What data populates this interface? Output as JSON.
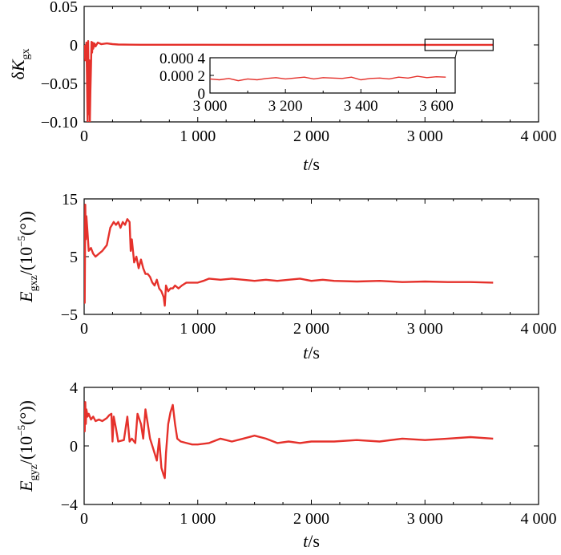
{
  "colors": {
    "series": "#e5312b",
    "axis": "#000000"
  },
  "chart_data": [
    {
      "type": "line",
      "panel": "top",
      "xlim": [
        0,
        4000
      ],
      "ylim": [
        -0.1,
        0.05
      ],
      "xticks": [
        {
          "v": 0,
          "label": "0"
        },
        {
          "v": 1000,
          "label": "1 000"
        },
        {
          "v": 2000,
          "label": "2 000"
        },
        {
          "v": 3000,
          "label": "3 000"
        },
        {
          "v": 4000,
          "label": "4 000"
        }
      ],
      "yticks": [
        {
          "v": 0.05,
          "label": "0.05"
        },
        {
          "v": 0,
          "label": "0"
        },
        {
          "v": -0.05,
          "label": "−0.05"
        },
        {
          "v": -0.1,
          "label": "−0.10"
        }
      ],
      "xlabel": {
        "main": "t",
        "unit": "/s"
      },
      "ylabel": {
        "prefix": "δK",
        "sub": "gx"
      },
      "series": [
        {
          "x": [
            0,
            10,
            20,
            25,
            30,
            35,
            40,
            45,
            50,
            55,
            60,
            65,
            70,
            75,
            80,
            90,
            100,
            120,
            150,
            200,
            250,
            300,
            400,
            500,
            700,
            1000,
            1500,
            2000,
            2500,
            3000,
            3600
          ],
          "y": [
            0.0,
            -0.02,
            0.003,
            -0.04,
            -0.1,
            0.005,
            -0.09,
            -0.02,
            -0.1,
            -0.06,
            -0.03,
            0.004,
            -0.01,
            0.003,
            -0.005,
            0.002,
            -0.002,
            0.003,
            0.001,
            0.002,
            0.001,
            0.0005,
            0.0003,
            0.0002,
            0.0002,
            0.0002,
            0.00015,
            0.00015,
            0.00015,
            0.00015,
            0.00015
          ]
        }
      ],
      "zoom_box": {
        "xlim": [
          3000,
          3600
        ]
      },
      "inset": {
        "xlim": [
          3000,
          3650
        ],
        "ylim": [
          0,
          0.0004
        ],
        "xticks": [
          {
            "v": 3000,
            "label": "3 000"
          },
          {
            "v": 3200,
            "label": "3 200"
          },
          {
            "v": 3400,
            "label": "3 400"
          },
          {
            "v": 3600,
            "label": "3 600"
          }
        ],
        "yticks": [
          {
            "v": 0.0004,
            "label": "0.000 4"
          },
          {
            "v": 0.0002,
            "label": "0.000 2"
          },
          {
            "v": 0,
            "label": "0"
          }
        ],
        "series": [
          {
            "x": [
              3000,
              3025,
              3050,
              3075,
              3100,
              3125,
              3150,
              3175,
              3200,
              3225,
              3250,
              3275,
              3300,
              3325,
              3350,
              3375,
              3400,
              3425,
              3450,
              3475,
              3500,
              3525,
              3550,
              3575,
              3600,
              3625
            ],
            "y": [
              0.00016,
              0.00015,
              0.000165,
              0.00014,
              0.00016,
              0.00015,
              0.000165,
              0.000175,
              0.00016,
              0.00017,
              0.00018,
              0.00016,
              0.000175,
              0.00017,
              0.000165,
              0.00018,
              0.00015,
              0.000165,
              0.00017,
              0.00016,
              0.00018,
              0.00017,
              0.00019,
              0.000175,
              0.000185,
              0.00018
            ]
          }
        ]
      }
    },
    {
      "type": "line",
      "panel": "middle",
      "xlim": [
        0,
        4000
      ],
      "ylim": [
        -5,
        15
      ],
      "xticks": [
        {
          "v": 0,
          "label": "0"
        },
        {
          "v": 1000,
          "label": "1 000"
        },
        {
          "v": 2000,
          "label": "2 000"
        },
        {
          "v": 3000,
          "label": "3 000"
        },
        {
          "v": 4000,
          "label": "4 000"
        }
      ],
      "yticks": [
        {
          "v": 15,
          "label": "15"
        },
        {
          "v": 5,
          "label": "5"
        },
        {
          "v": -5,
          "label": "−5"
        }
      ],
      "xlabel": {
        "main": "t",
        "unit": "/s"
      },
      "ylabel": {
        "prefix": "E",
        "sub": "gxz",
        "unit_a": "/(10",
        "sup": "−5",
        "unit_b": "(°))"
      },
      "series": [
        {
          "x": [
            0,
            5,
            10,
            15,
            20,
            30,
            40,
            60,
            80,
            100,
            130,
            160,
            200,
            230,
            260,
            280,
            300,
            320,
            340,
            360,
            380,
            400,
            410,
            420,
            440,
            460,
            480,
            500,
            520,
            540,
            560,
            580,
            600,
            620,
            640,
            660,
            680,
            700,
            710,
            720,
            740,
            760,
            780,
            800,
            830,
            860,
            900,
            950,
            1000,
            1050,
            1100,
            1200,
            1300,
            1400,
            1500,
            1600,
            1700,
            1800,
            1900,
            2000,
            2100,
            2200,
            2400,
            2600,
            2800,
            3000,
            3200,
            3400,
            3600
          ],
          "y": [
            3,
            -3,
            14,
            8,
            12,
            9,
            6,
            6.5,
            5.5,
            5,
            5.5,
            6,
            7,
            10,
            11,
            10.5,
            11,
            10,
            11,
            10.5,
            11.5,
            11,
            6,
            8,
            4,
            5,
            3,
            4.5,
            3,
            2,
            2,
            1.5,
            0.5,
            0,
            1,
            -0.5,
            -1,
            -2,
            -3.5,
            0,
            -1,
            -0.5,
            -0.5,
            0,
            -0.5,
            0,
            0.5,
            0.5,
            0.5,
            0.8,
            1.2,
            1.0,
            1.2,
            1.0,
            0.8,
            1.0,
            0.8,
            1.0,
            1.2,
            0.8,
            1.0,
            0.8,
            0.7,
            0.8,
            0.6,
            0.7,
            0.6,
            0.6,
            0.5
          ]
        }
      ]
    },
    {
      "type": "line",
      "panel": "bottom",
      "xlim": [
        0,
        4000
      ],
      "ylim": [
        -4,
        4
      ],
      "xticks": [
        {
          "v": 0,
          "label": "0"
        },
        {
          "v": 1000,
          "label": "1 000"
        },
        {
          "v": 2000,
          "label": "2 000"
        },
        {
          "v": 3000,
          "label": "3 000"
        },
        {
          "v": 4000,
          "label": "4 000"
        }
      ],
      "yticks": [
        {
          "v": 4,
          "label": "4"
        },
        {
          "v": 0,
          "label": "0"
        },
        {
          "v": -4,
          "label": "−4"
        }
      ],
      "xlabel": {
        "main": "t",
        "unit": "/s"
      },
      "ylabel": {
        "prefix": "E",
        "sub": "gyz",
        "unit_a": "/(10",
        "sup": "−5",
        "unit_b": "(°))"
      },
      "series": [
        {
          "x": [
            0,
            5,
            10,
            15,
            20,
            30,
            40,
            60,
            80,
            100,
            130,
            160,
            200,
            220,
            240,
            250,
            260,
            280,
            300,
            350,
            380,
            400,
            420,
            450,
            470,
            500,
            520,
            540,
            560,
            580,
            600,
            620,
            640,
            660,
            680,
            700,
            710,
            720,
            740,
            760,
            780,
            800,
            820,
            850,
            900,
            950,
            1000,
            1100,
            1200,
            1300,
            1400,
            1500,
            1600,
            1700,
            1800,
            1900,
            2000,
            2200,
            2400,
            2600,
            2800,
            3000,
            3200,
            3400,
            3600
          ],
          "y": [
            2,
            1,
            3,
            1.5,
            2.5,
            2,
            2.2,
            1.8,
            2,
            1.7,
            1.8,
            1.7,
            1.9,
            2.1,
            2.2,
            0.3,
            2,
            1.2,
            0.3,
            0.4,
            2,
            0.3,
            0.5,
            0.2,
            2.2,
            1.5,
            0.5,
            2.5,
            1.5,
            0.5,
            0,
            -0.5,
            -1,
            0.5,
            -1.5,
            -2,
            -2.2,
            -0.5,
            1.5,
            2.3,
            2.8,
            1.5,
            0.5,
            0.3,
            0.2,
            0.1,
            0.1,
            0.2,
            0.5,
            0.3,
            0.5,
            0.7,
            0.5,
            0.2,
            0.3,
            0.2,
            0.3,
            0.3,
            0.4,
            0.3,
            0.5,
            0.4,
            0.5,
            0.6,
            0.5
          ]
        }
      ]
    }
  ]
}
